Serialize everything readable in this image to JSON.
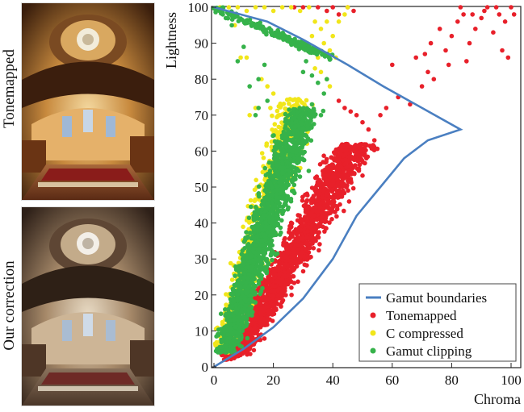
{
  "figure": {
    "top_label": "Tonemapped",
    "bottom_label": "Our correction"
  },
  "chart_data": {
    "type": "scatter",
    "title": "",
    "xlabel": "Chroma",
    "ylabel": "Lightness",
    "xlim": [
      0,
      105
    ],
    "ylim": [
      0,
      100
    ],
    "xticks": [
      "0",
      "20",
      "40",
      "60",
      "80",
      "100"
    ],
    "yticks": [
      "0",
      "10",
      "20",
      "30",
      "40",
      "50",
      "60",
      "70",
      "80",
      "90",
      "100"
    ],
    "grid": false,
    "legend_position": "bottom-right",
    "gamut_boundary": {
      "name": "Gamut boundaries",
      "color": "#4a7fc1",
      "points": [
        [
          0,
          0
        ],
        [
          10,
          5
        ],
        [
          20,
          11
        ],
        [
          30,
          19
        ],
        [
          40,
          30
        ],
        [
          48,
          42
        ],
        [
          56,
          50
        ],
        [
          64,
          58
        ],
        [
          72,
          63
        ],
        [
          83,
          66
        ],
        [
          57,
          78
        ],
        [
          45,
          84
        ],
        [
          30,
          91
        ],
        [
          18,
          96
        ],
        [
          0,
          100
        ]
      ]
    },
    "series": [
      {
        "name": "Tonemapped",
        "color": "#e8202a",
        "bands": [
          {
            "y_from": 3,
            "y_to": 62,
            "c_at_low": 7,
            "c_at_high": 48,
            "spread": 10,
            "count": 1800
          },
          {
            "y_from": 2,
            "y_to": 8,
            "c_at_low": 5,
            "c_at_high": 14,
            "spread": 4,
            "count": 120
          }
        ],
        "extra_points": [
          [
            52,
            66
          ],
          [
            50,
            68
          ],
          [
            54,
            63
          ],
          [
            48,
            70
          ],
          [
            44,
            72
          ],
          [
            42,
            74
          ],
          [
            46,
            71
          ],
          [
            56,
            70
          ],
          [
            58,
            72
          ],
          [
            62,
            75
          ],
          [
            66,
            73
          ],
          [
            70,
            78
          ],
          [
            72,
            82
          ],
          [
            68,
            86
          ],
          [
            74,
            80
          ],
          [
            60,
            84
          ],
          [
            78,
            88
          ],
          [
            80,
            92
          ],
          [
            76,
            94
          ],
          [
            82,
            96
          ],
          [
            84,
            98
          ],
          [
            86,
            90
          ],
          [
            88,
            94
          ],
          [
            90,
            97
          ],
          [
            92,
            100
          ],
          [
            94,
            93
          ],
          [
            96,
            98
          ],
          [
            98,
            96
          ],
          [
            100,
            100
          ],
          [
            97,
            88
          ],
          [
            99,
            86
          ],
          [
            73,
            90
          ],
          [
            71,
            87
          ],
          [
            85,
            85
          ],
          [
            79,
            84
          ],
          [
            87,
            98
          ],
          [
            91,
            99
          ],
          [
            95,
            100
          ],
          [
            101,
            98
          ],
          [
            83,
            100
          ],
          [
            30,
            100
          ],
          [
            27,
            100
          ],
          [
            35,
            100
          ],
          [
            40,
            100
          ],
          [
            45,
            100
          ],
          [
            47,
            99
          ],
          [
            42,
            98
          ],
          [
            38,
            99
          ]
        ]
      },
      {
        "name": "C compressed",
        "color": "#f1e61a",
        "bands": [
          {
            "y_from": 4,
            "y_to": 75,
            "c_at_low": 3,
            "c_at_high": 28,
            "spread": 9,
            "count": 700
          }
        ],
        "extra_points": [
          [
            2,
            100
          ],
          [
            5,
            100
          ],
          [
            8,
            100
          ],
          [
            11,
            99
          ],
          [
            14,
            100
          ],
          [
            17,
            100
          ],
          [
            20,
            99
          ],
          [
            23,
            100
          ],
          [
            26,
            100
          ],
          [
            29,
            99
          ],
          [
            32,
            100
          ],
          [
            34,
            96
          ],
          [
            33,
            92
          ],
          [
            36,
            94
          ],
          [
            37,
            90
          ],
          [
            38,
            96
          ],
          [
            39,
            88
          ],
          [
            40,
            92
          ],
          [
            41,
            86
          ],
          [
            42,
            96
          ],
          [
            44,
            98
          ],
          [
            45,
            100
          ],
          [
            35,
            86
          ],
          [
            34,
            83
          ],
          [
            36,
            82
          ],
          [
            38,
            80
          ],
          [
            39,
            78
          ],
          [
            16,
            80
          ],
          [
            18,
            78
          ],
          [
            20,
            76
          ],
          [
            14,
            72
          ],
          [
            12,
            70
          ],
          [
            19,
            72
          ],
          [
            22,
            70
          ],
          [
            9,
            86
          ],
          [
            11,
            86
          ],
          [
            7,
            95
          ]
        ]
      },
      {
        "name": "Gamut clipping",
        "color": "#36b24a",
        "bands": [
          {
            "y_from": 4,
            "y_to": 72,
            "c_at_low": 4,
            "c_at_high": 30,
            "spread": 9,
            "count": 1700
          }
        ],
        "boundary_band": {
          "c_from": 0,
          "c_to": 40,
          "count": 180
        },
        "extra_points": [
          [
            12,
            78
          ],
          [
            15,
            80
          ],
          [
            17,
            84
          ],
          [
            10,
            89
          ],
          [
            8,
            85
          ],
          [
            30,
            82
          ],
          [
            31,
            85
          ],
          [
            33,
            81
          ],
          [
            35,
            79
          ],
          [
            37,
            76
          ],
          [
            38,
            80
          ],
          [
            36,
            70
          ],
          [
            33,
            73
          ],
          [
            15,
            72
          ],
          [
            14,
            70
          ],
          [
            18,
            74
          ],
          [
            6,
            95
          ],
          [
            4,
            97
          ],
          [
            3,
            98
          ]
        ]
      }
    ]
  }
}
